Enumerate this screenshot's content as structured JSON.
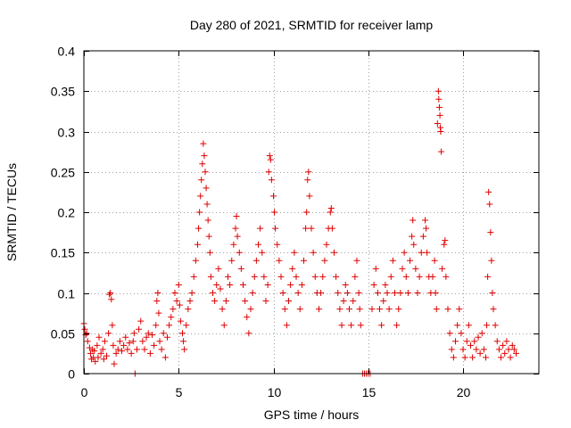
{
  "chart_data": {
    "type": "scatter",
    "title": "Day 280 of 2021, SRMTID for receiver lamp",
    "xlabel": "GPS time / hours",
    "ylabel": "SRMTID / TECUs",
    "xlim": [
      0,
      24
    ],
    "ylim": [
      0,
      0.4
    ],
    "x_ticks": [
      0,
      5,
      10,
      15,
      20
    ],
    "x_tick_labels": [
      "0",
      "5",
      "10",
      "15",
      "20"
    ],
    "y_ticks": [
      0,
      0.05,
      0.1,
      0.15,
      0.2,
      0.25,
      0.3,
      0.35,
      0.4
    ],
    "y_tick_labels": [
      "0",
      "0.05",
      "0.1",
      "0.15",
      "0.2",
      "0.25",
      "0.3",
      "0.35",
      "0.4"
    ],
    "grid": true,
    "marker": "+",
    "color": "#e00000",
    "series": [
      {
        "name": "SRMTID",
        "points": [
          [
            0.0,
            0.062
          ],
          [
            0.05,
            0.055
          ],
          [
            0.1,
            0.048
          ],
          [
            0.15,
            0.05
          ],
          [
            0.2,
            0.04
          ],
          [
            0.3,
            0.032
          ],
          [
            0.35,
            0.025
          ],
          [
            0.4,
            0.018
          ],
          [
            0.45,
            0.03
          ],
          [
            0.5,
            0.02
          ],
          [
            0.55,
            0.028
          ],
          [
            0.6,
            0.015
          ],
          [
            0.7,
            0.035
          ],
          [
            0.75,
            0.02
          ],
          [
            0.8,
            0.045
          ],
          [
            0.9,
            0.025
          ],
          [
            1.0,
            0.03
          ],
          [
            1.05,
            0.018
          ],
          [
            1.1,
            0.04
          ],
          [
            1.2,
            0.022
          ],
          [
            1.3,
            0.05
          ],
          [
            1.35,
            0.098
          ],
          [
            1.4,
            0.1
          ],
          [
            1.45,
            0.092
          ],
          [
            1.5,
            0.06
          ],
          [
            1.55,
            0.035
          ],
          [
            1.6,
            0.012
          ],
          [
            1.7,
            0.025
          ],
          [
            1.8,
            0.03
          ],
          [
            1.9,
            0.04
          ],
          [
            2.0,
            0.028
          ],
          [
            2.1,
            0.035
          ],
          [
            2.2,
            0.045
          ],
          [
            2.3,
            0.03
          ],
          [
            2.4,
            0.038
          ],
          [
            2.5,
            0.025
          ],
          [
            2.6,
            0.04
          ],
          [
            2.65,
            0.05
          ],
          [
            2.7,
            0.0
          ],
          [
            2.8,
            0.03
          ],
          [
            2.9,
            0.055
          ],
          [
            3.0,
            0.065
          ],
          [
            3.1,
            0.04
          ],
          [
            3.2,
            0.03
          ],
          [
            3.3,
            0.045
          ],
          [
            3.4,
            0.05
          ],
          [
            3.5,
            0.025
          ],
          [
            3.6,
            0.048
          ],
          [
            3.7,
            0.035
          ],
          [
            3.8,
            0.06
          ],
          [
            3.85,
            0.09
          ],
          [
            3.9,
            0.1
          ],
          [
            3.95,
            0.075
          ],
          [
            4.0,
            0.04
          ],
          [
            4.1,
            0.03
          ],
          [
            4.2,
            0.05
          ],
          [
            4.3,
            0.02
          ],
          [
            4.4,
            0.045
          ],
          [
            4.5,
            0.06
          ],
          [
            4.6,
            0.07
          ],
          [
            4.7,
            0.08
          ],
          [
            4.8,
            0.1
          ],
          [
            4.9,
            0.09
          ],
          [
            5.0,
            0.11
          ],
          [
            5.05,
            0.085
          ],
          [
            5.1,
            0.065
          ],
          [
            5.2,
            0.05
          ],
          [
            5.25,
            0.04
          ],
          [
            5.3,
            0.03
          ],
          [
            5.4,
            0.06
          ],
          [
            5.5,
            0.08
          ],
          [
            5.6,
            0.09
          ],
          [
            5.7,
            0.1
          ],
          [
            5.8,
            0.12
          ],
          [
            5.9,
            0.14
          ],
          [
            6.0,
            0.16
          ],
          [
            6.05,
            0.18
          ],
          [
            6.1,
            0.2
          ],
          [
            6.15,
            0.22
          ],
          [
            6.2,
            0.24
          ],
          [
            6.25,
            0.26
          ],
          [
            6.3,
            0.285
          ],
          [
            6.35,
            0.27
          ],
          [
            6.4,
            0.25
          ],
          [
            6.45,
            0.23
          ],
          [
            6.5,
            0.21
          ],
          [
            6.55,
            0.19
          ],
          [
            6.6,
            0.17
          ],
          [
            6.65,
            0.15
          ],
          [
            6.7,
            0.12
          ],
          [
            6.8,
            0.1
          ],
          [
            6.9,
            0.09
          ],
          [
            7.0,
            0.11
          ],
          [
            7.1,
            0.13
          ],
          [
            7.2,
            0.105
          ],
          [
            7.3,
            0.08
          ],
          [
            7.4,
            0.06
          ],
          [
            7.5,
            0.09
          ],
          [
            7.6,
            0.12
          ],
          [
            7.7,
            0.11
          ],
          [
            7.8,
            0.14
          ],
          [
            7.9,
            0.16
          ],
          [
            8.0,
            0.18
          ],
          [
            8.05,
            0.195
          ],
          [
            8.1,
            0.17
          ],
          [
            8.2,
            0.15
          ],
          [
            8.3,
            0.13
          ],
          [
            8.4,
            0.11
          ],
          [
            8.5,
            0.09
          ],
          [
            8.6,
            0.07
          ],
          [
            8.7,
            0.05
          ],
          [
            8.8,
            0.08
          ],
          [
            8.9,
            0.1
          ],
          [
            9.0,
            0.12
          ],
          [
            9.1,
            0.14
          ],
          [
            9.2,
            0.16
          ],
          [
            9.3,
            0.18
          ],
          [
            9.4,
            0.15
          ],
          [
            9.5,
            0.12
          ],
          [
            9.6,
            0.09
          ],
          [
            9.7,
            0.11
          ],
          [
            9.75,
            0.25
          ],
          [
            9.8,
            0.27
          ],
          [
            9.85,
            0.265
          ],
          [
            9.9,
            0.24
          ],
          [
            10.0,
            0.22
          ],
          [
            10.05,
            0.2
          ],
          [
            10.1,
            0.18
          ],
          [
            10.2,
            0.16
          ],
          [
            10.3,
            0.14
          ],
          [
            10.4,
            0.12
          ],
          [
            10.5,
            0.1
          ],
          [
            10.6,
            0.08
          ],
          [
            10.7,
            0.06
          ],
          [
            10.8,
            0.09
          ],
          [
            10.9,
            0.11
          ],
          [
            11.0,
            0.13
          ],
          [
            11.1,
            0.15
          ],
          [
            11.2,
            0.12
          ],
          [
            11.3,
            0.1
          ],
          [
            11.4,
            0.08
          ],
          [
            11.5,
            0.11
          ],
          [
            11.6,
            0.14
          ],
          [
            11.7,
            0.18
          ],
          [
            11.75,
            0.2
          ],
          [
            11.8,
            0.24
          ],
          [
            11.85,
            0.25
          ],
          [
            11.9,
            0.22
          ],
          [
            12.0,
            0.18
          ],
          [
            12.1,
            0.15
          ],
          [
            12.2,
            0.12
          ],
          [
            12.3,
            0.1
          ],
          [
            12.4,
            0.08
          ],
          [
            12.5,
            0.1
          ],
          [
            12.6,
            0.12
          ],
          [
            12.7,
            0.14
          ],
          [
            12.8,
            0.16
          ],
          [
            12.9,
            0.18
          ],
          [
            13.0,
            0.2
          ],
          [
            13.05,
            0.205
          ],
          [
            13.1,
            0.18
          ],
          [
            13.2,
            0.15
          ],
          [
            13.3,
            0.12
          ],
          [
            13.4,
            0.1
          ],
          [
            13.5,
            0.08
          ],
          [
            13.6,
            0.06
          ],
          [
            13.7,
            0.09
          ],
          [
            13.8,
            0.11
          ],
          [
            13.9,
            0.1
          ],
          [
            14.0,
            0.08
          ],
          [
            14.1,
            0.06
          ],
          [
            14.2,
            0.09
          ],
          [
            14.3,
            0.12
          ],
          [
            14.4,
            0.14
          ],
          [
            14.5,
            0.1
          ],
          [
            14.55,
            0.08
          ],
          [
            14.6,
            0.06
          ],
          [
            14.7,
            0.0
          ],
          [
            14.8,
            0.0
          ],
          [
            14.9,
            0.0
          ],
          [
            15.0,
            0.0
          ],
          [
            15.1,
            0.0
          ],
          [
            15.2,
            0.08
          ],
          [
            15.3,
            0.11
          ],
          [
            15.4,
            0.13
          ],
          [
            15.5,
            0.1
          ],
          [
            15.6,
            0.08
          ],
          [
            15.7,
            0.06
          ],
          [
            15.8,
            0.09
          ],
          [
            15.9,
            0.11
          ],
          [
            16.0,
            0.1
          ],
          [
            16.1,
            0.08
          ],
          [
            16.2,
            0.12
          ],
          [
            16.3,
            0.14
          ],
          [
            16.4,
            0.1
          ],
          [
            16.5,
            0.06
          ],
          [
            16.6,
            0.08
          ],
          [
            16.7,
            0.1
          ],
          [
            16.8,
            0.13
          ],
          [
            16.9,
            0.15
          ],
          [
            17.0,
            0.12
          ],
          [
            17.1,
            0.1
          ],
          [
            17.2,
            0.14
          ],
          [
            17.3,
            0.17
          ],
          [
            17.35,
            0.19
          ],
          [
            17.4,
            0.16
          ],
          [
            17.5,
            0.13
          ],
          [
            17.6,
            0.1
          ],
          [
            17.7,
            0.12
          ],
          [
            17.8,
            0.15
          ],
          [
            17.9,
            0.17
          ],
          [
            18.0,
            0.19
          ],
          [
            18.05,
            0.18
          ],
          [
            18.1,
            0.15
          ],
          [
            18.2,
            0.12
          ],
          [
            18.3,
            0.1
          ],
          [
            18.4,
            0.12
          ],
          [
            18.5,
            0.14
          ],
          [
            18.55,
            0.1
          ],
          [
            18.6,
            0.08
          ],
          [
            18.65,
            0.31
          ],
          [
            18.7,
            0.35
          ],
          [
            18.72,
            0.34
          ],
          [
            18.75,
            0.33
          ],
          [
            18.78,
            0.32
          ],
          [
            18.8,
            0.305
          ],
          [
            18.82,
            0.3
          ],
          [
            18.85,
            0.275
          ],
          [
            18.9,
            0.13
          ],
          [
            19.0,
            0.16
          ],
          [
            19.05,
            0.165
          ],
          [
            19.1,
            0.12
          ],
          [
            19.2,
            0.08
          ],
          [
            19.3,
            0.05
          ],
          [
            19.4,
            0.03
          ],
          [
            19.5,
            0.02
          ],
          [
            19.6,
            0.04
          ],
          [
            19.7,
            0.06
          ],
          [
            19.8,
            0.08
          ],
          [
            19.9,
            0.05
          ],
          [
            20.0,
            0.03
          ],
          [
            20.1,
            0.02
          ],
          [
            20.2,
            0.04
          ],
          [
            20.3,
            0.06
          ],
          [
            20.4,
            0.035
          ],
          [
            20.5,
            0.02
          ],
          [
            20.6,
            0.04
          ],
          [
            20.7,
            0.03
          ],
          [
            20.8,
            0.045
          ],
          [
            20.9,
            0.025
          ],
          [
            21.0,
            0.05
          ],
          [
            21.1,
            0.03
          ],
          [
            21.2,
            0.02
          ],
          [
            21.25,
            0.06
          ],
          [
            21.3,
            0.12
          ],
          [
            21.35,
            0.225
          ],
          [
            21.4,
            0.21
          ],
          [
            21.45,
            0.175
          ],
          [
            21.5,
            0.14
          ],
          [
            21.55,
            0.1
          ],
          [
            21.6,
            0.08
          ],
          [
            21.7,
            0.06
          ],
          [
            21.8,
            0.04
          ],
          [
            21.9,
            0.03
          ],
          [
            22.0,
            0.02
          ],
          [
            22.1,
            0.035
          ],
          [
            22.2,
            0.025
          ],
          [
            22.3,
            0.04
          ],
          [
            22.4,
            0.03
          ],
          [
            22.5,
            0.02
          ],
          [
            22.6,
            0.035
          ],
          [
            22.7,
            0.03
          ],
          [
            22.8,
            0.025
          ]
        ]
      }
    ]
  }
}
